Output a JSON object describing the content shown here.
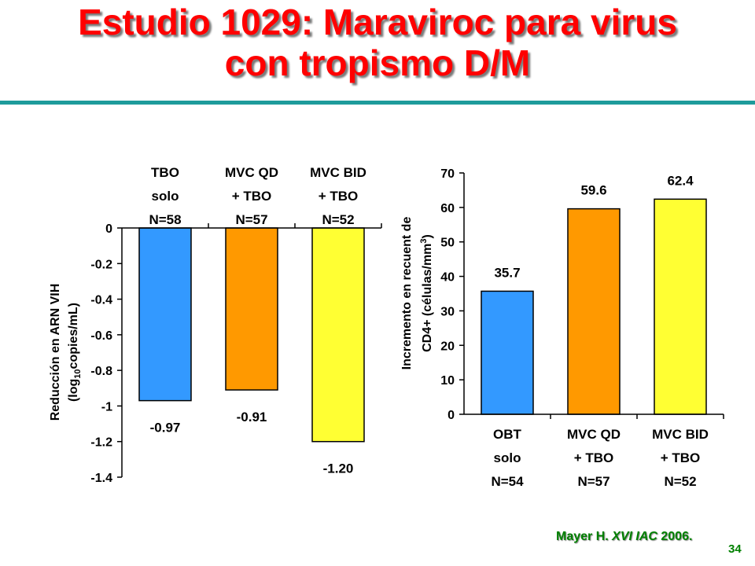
{
  "title": {
    "line1": "Estudio 1029: Maraviroc para virus",
    "line2": "con  tropismo  D/M"
  },
  "chart_data": [
    {
      "type": "bar",
      "ylabel_line1": "Reducción en ARN VIH",
      "ylabel_line2_pre": "(log",
      "ylabel_line2_sub": "10",
      "ylabel_line2_post": "copies/mL)",
      "ylim": [
        -1.4,
        0
      ],
      "yticks": [
        0,
        -0.2,
        -0.4,
        -0.6,
        -0.8,
        -1,
        -1.2,
        -1.4
      ],
      "ytick_labels": [
        "0",
        "-0.2",
        "-0.4",
        "-0.6",
        "-0.8",
        "-1",
        "-1.2",
        "-1.4"
      ],
      "category_position": "top",
      "categories": [
        [
          "TBO",
          "solo",
          "N=58"
        ],
        [
          "MVC QD",
          "+ TBO",
          "N=57"
        ],
        [
          "MVC BID",
          "+ TBO",
          "N=52"
        ]
      ],
      "values": [
        -0.97,
        -0.91,
        -1.2
      ],
      "value_labels": [
        "-0.97",
        "-0.91",
        "-1.20"
      ],
      "colors": [
        "#3399ff",
        "#ff9900",
        "#ffff33"
      ],
      "grid": false
    },
    {
      "type": "bar",
      "ylabel_line1": "Incremento en recuent de",
      "ylabel_line2_pre": "CD4+ (células/mm",
      "ylabel_line2_sup": "3",
      "ylabel_line2_post": ")",
      "ylim": [
        0,
        70
      ],
      "yticks": [
        0,
        10,
        20,
        30,
        40,
        50,
        60,
        70
      ],
      "ytick_labels": [
        "0",
        "10",
        "20",
        "30",
        "40",
        "50",
        "60",
        "70"
      ],
      "category_position": "bottom",
      "categories": [
        [
          "OBT",
          "solo",
          "N=54"
        ],
        [
          "MVC QD",
          "+ TBO",
          "N=57"
        ],
        [
          "MVC BID",
          "+ TBO",
          "N=52"
        ]
      ],
      "values": [
        35.7,
        59.6,
        62.4
      ],
      "value_labels": [
        "35.7",
        "59.6",
        "62.4"
      ],
      "colors": [
        "#3399ff",
        "#ff9900",
        "#ffff33"
      ],
      "grid": false
    }
  ],
  "citation": {
    "author": "Mayer H. ",
    "venue": "XVI IAC",
    "year": " 2006."
  },
  "page_number": "34"
}
